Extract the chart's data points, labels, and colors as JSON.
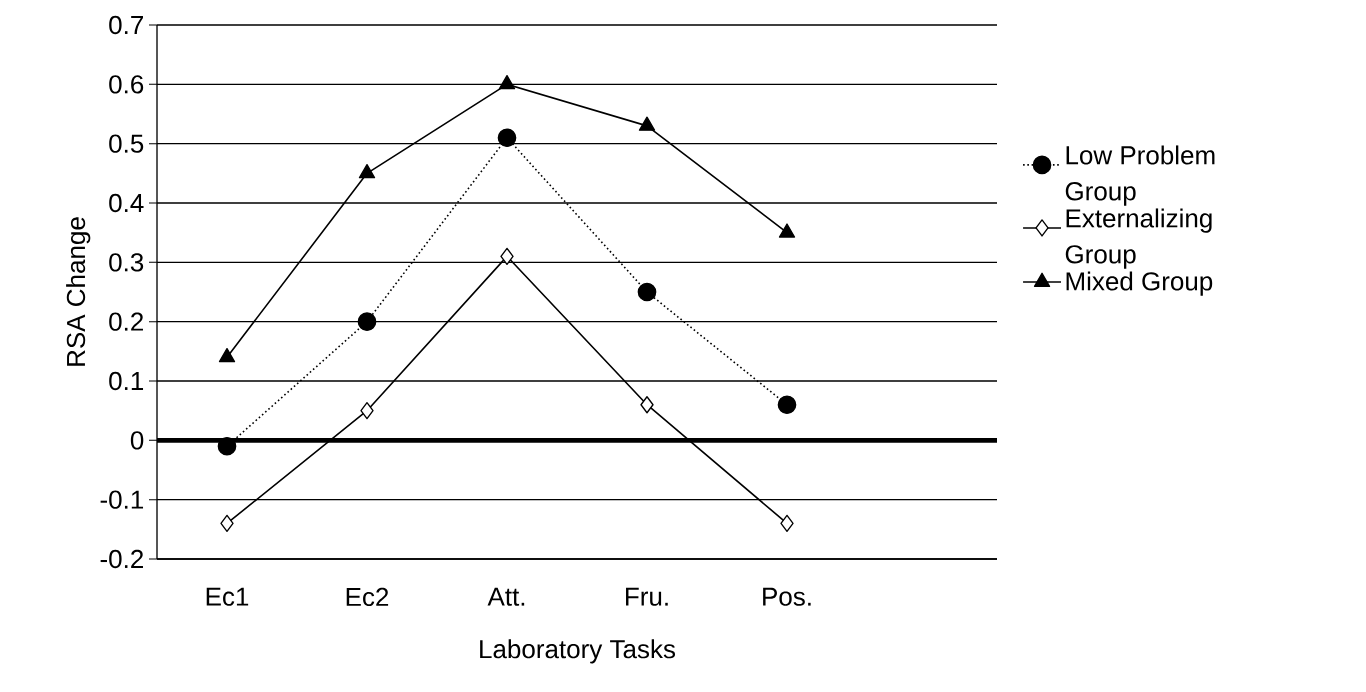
{
  "chart_data": {
    "type": "line",
    "xlabel": "Laboratory Tasks",
    "ylabel": "RSA Change",
    "categories": [
      "Ec1",
      "Ec2",
      "Att.",
      "Fru.",
      "Pos."
    ],
    "series": [
      {
        "name": "Low Problem Group",
        "color": "#000000",
        "marker": "circle",
        "line_style": "dotted",
        "values": [
          -0.01,
          0.2,
          0.51,
          0.25,
          0.06
        ]
      },
      {
        "name": "Externalizing Group",
        "color": "#000000",
        "marker": "diamond",
        "line_style": "solid",
        "values": [
          -0.14,
          0.05,
          0.31,
          0.06,
          -0.14
        ]
      },
      {
        "name": "Mixed Group",
        "color": "#000000",
        "marker": "triangle",
        "line_style": "solid",
        "values": [
          0.14,
          0.45,
          0.6,
          0.53,
          0.35
        ]
      }
    ],
    "ylim": [
      -0.2,
      0.7
    ],
    "yticks": [
      -0.2,
      -0.1,
      0,
      0.1,
      0.2,
      0.3,
      0.4,
      0.5,
      0.6,
      0.7
    ],
    "ref_lines": [
      {
        "axis": "y",
        "value": 0
      }
    ],
    "grid": "y",
    "legend": "right"
  }
}
